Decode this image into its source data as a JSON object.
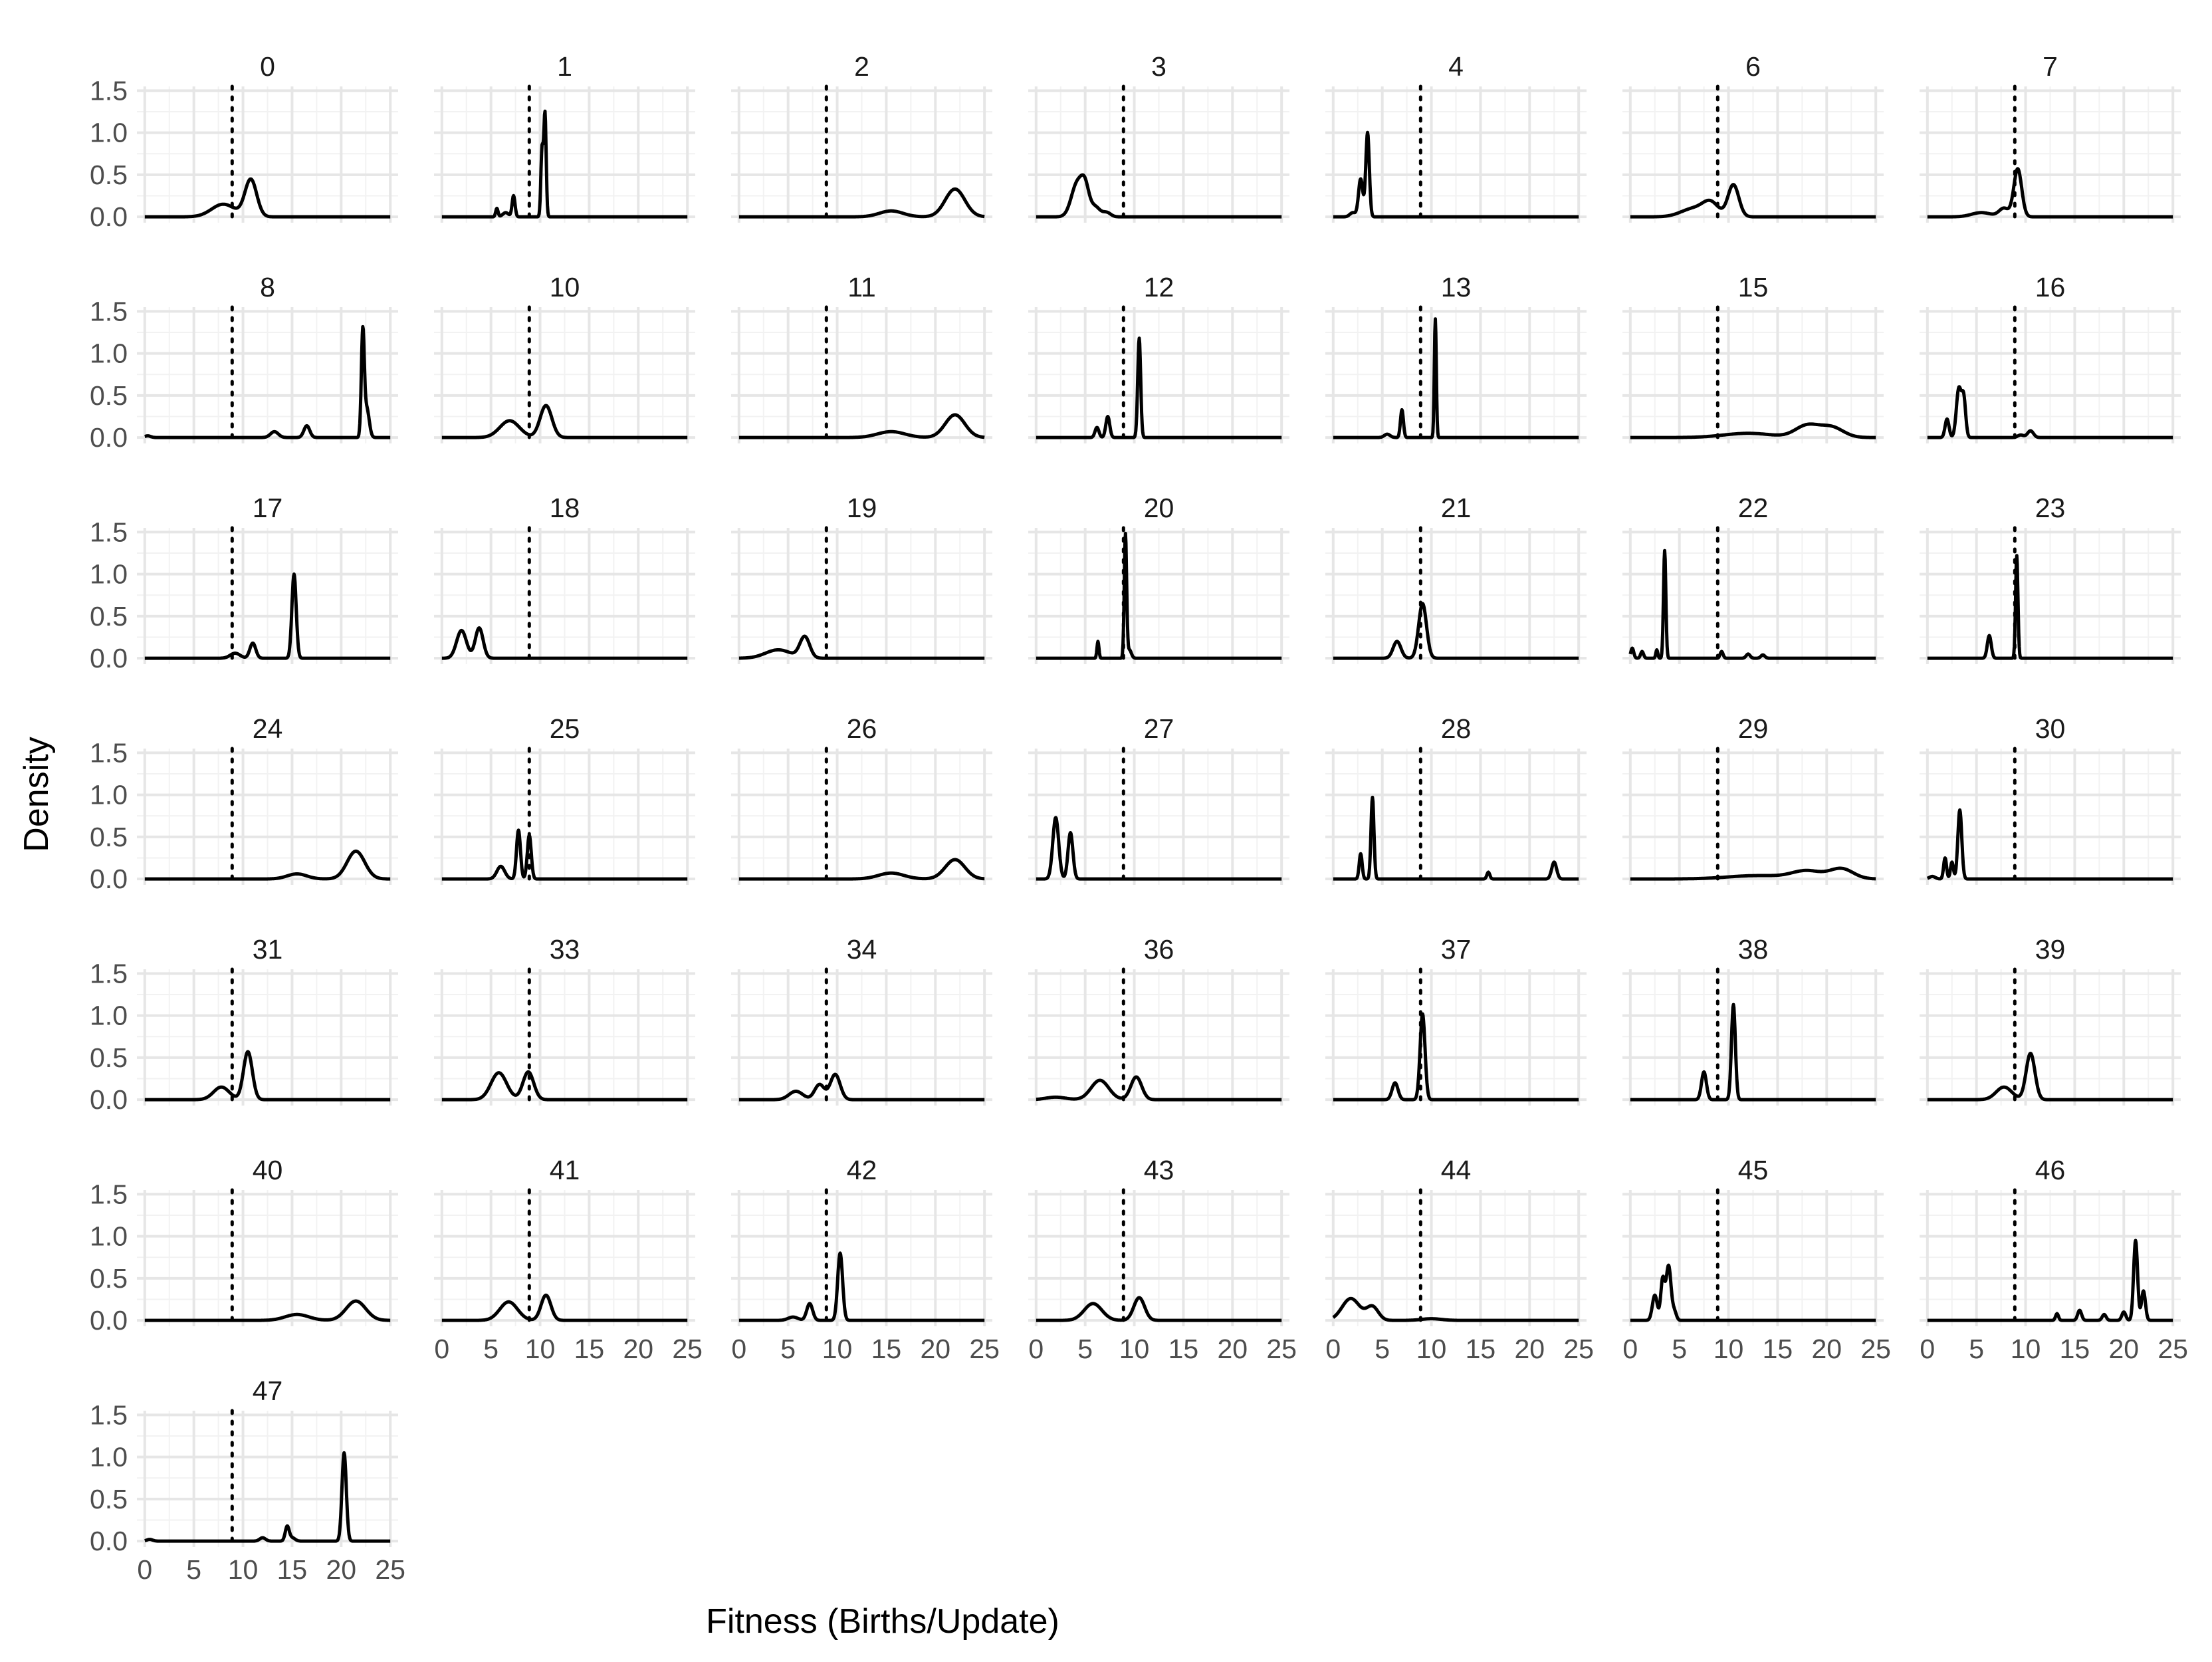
{
  "chart_data": {
    "type": "line",
    "title": "",
    "xlabel": "Fitness (Births/Update)",
    "ylabel": "Density",
    "xlim": [
      -0.8,
      25.8
    ],
    "ylim": [
      -0.07,
      1.55
    ],
    "x_ticks": [
      0,
      5,
      10,
      15,
      20,
      25
    ],
    "y_ticks": [
      0.0,
      0.5,
      1.0,
      1.5
    ],
    "x_tick_labels": [
      "0",
      "5",
      "10",
      "15",
      "20",
      "25"
    ],
    "y_tick_labels": [
      "0.0",
      "0.5",
      "1.0",
      "1.5"
    ],
    "reference_line": {
      "x": 8.9,
      "style": "dotted"
    },
    "grid": true,
    "legend": "none",
    "facet_columns": 7,
    "panels": [
      {
        "label": "0",
        "peaks": [
          [
            8.0,
            0.15,
            1.2
          ],
          [
            10.8,
            0.44,
            0.6
          ]
        ]
      },
      {
        "label": "1",
        "peaks": [
          [
            5.6,
            0.1,
            0.12
          ],
          [
            7.3,
            0.25,
            0.15
          ],
          [
            6.5,
            0.05,
            0.3
          ],
          [
            10.2,
            0.8,
            0.12
          ],
          [
            10.5,
            1.22,
            0.12
          ]
        ]
      },
      {
        "label": "2",
        "peaks": [
          [
            15.5,
            0.07,
            1.2
          ],
          [
            22.0,
            0.33,
            1.0
          ]
        ]
      },
      {
        "label": "3",
        "peaks": [
          [
            4.2,
            0.4,
            0.6
          ],
          [
            5.0,
            0.28,
            0.4
          ],
          [
            6.0,
            0.12,
            0.5
          ],
          [
            7.2,
            0.05,
            0.4
          ]
        ]
      },
      {
        "label": "4",
        "peaks": [
          [
            2.8,
            0.45,
            0.22
          ],
          [
            3.5,
            1.0,
            0.18
          ],
          [
            2.0,
            0.05,
            0.3
          ]
        ]
      },
      {
        "label": "6",
        "peaks": [
          [
            6.5,
            0.1,
            1.3
          ],
          [
            8.2,
            0.15,
            0.8
          ],
          [
            10.5,
            0.38,
            0.55
          ]
        ]
      },
      {
        "label": "7",
        "peaks": [
          [
            5.5,
            0.05,
            1.0
          ],
          [
            7.8,
            0.1,
            0.5
          ],
          [
            9.2,
            0.57,
            0.4
          ]
        ]
      },
      {
        "label": "8",
        "peaks": [
          [
            0.3,
            0.02,
            0.3
          ],
          [
            13.2,
            0.07,
            0.4
          ],
          [
            16.5,
            0.14,
            0.3
          ],
          [
            22.2,
            1.22,
            0.15
          ],
          [
            22.6,
            0.35,
            0.25
          ]
        ]
      },
      {
        "label": "10",
        "peaks": [
          [
            6.9,
            0.2,
            1.0
          ],
          [
            10.6,
            0.38,
            0.6
          ]
        ]
      },
      {
        "label": "11",
        "peaks": [
          [
            15.5,
            0.07,
            1.4
          ],
          [
            22.0,
            0.27,
            1.0
          ]
        ]
      },
      {
        "label": "12",
        "peaks": [
          [
            6.2,
            0.12,
            0.2
          ],
          [
            7.3,
            0.25,
            0.2
          ],
          [
            10.5,
            1.18,
            0.15
          ]
        ]
      },
      {
        "label": "13",
        "peaks": [
          [
            7.0,
            0.33,
            0.15
          ],
          [
            10.4,
            1.41,
            0.1
          ],
          [
            5.5,
            0.04,
            0.3
          ]
        ]
      },
      {
        "label": "15",
        "peaks": [
          [
            12.0,
            0.05,
            2.5
          ],
          [
            18.0,
            0.14,
            1.2
          ],
          [
            20.5,
            0.12,
            1.2
          ]
        ]
      },
      {
        "label": "16",
        "peaks": [
          [
            2.0,
            0.22,
            0.2
          ],
          [
            3.2,
            0.58,
            0.25
          ],
          [
            3.7,
            0.45,
            0.2
          ],
          [
            9.5,
            0.03,
            0.3
          ],
          [
            10.5,
            0.08,
            0.3
          ]
        ]
      },
      {
        "label": "17",
        "peaks": [
          [
            9.2,
            0.06,
            0.5
          ],
          [
            11.0,
            0.18,
            0.3
          ],
          [
            15.2,
            1.0,
            0.22
          ]
        ]
      },
      {
        "label": "18",
        "peaks": [
          [
            2.0,
            0.33,
            0.5
          ],
          [
            3.8,
            0.36,
            0.4
          ]
        ]
      },
      {
        "label": "19",
        "peaks": [
          [
            4.0,
            0.1,
            1.3
          ],
          [
            6.7,
            0.25,
            0.5
          ]
        ]
      },
      {
        "label": "20",
        "peaks": [
          [
            6.3,
            0.2,
            0.1
          ],
          [
            9.1,
            1.47,
            0.12
          ],
          [
            9.5,
            0.1,
            0.2
          ]
        ]
      },
      {
        "label": "21",
        "peaks": [
          [
            6.5,
            0.2,
            0.4
          ],
          [
            9.1,
            0.65,
            0.4
          ]
        ]
      },
      {
        "label": "22",
        "peaks": [
          [
            0.2,
            0.12,
            0.15
          ],
          [
            1.2,
            0.08,
            0.15
          ],
          [
            2.7,
            0.1,
            0.1
          ],
          [
            3.5,
            1.28,
            0.12
          ],
          [
            9.3,
            0.08,
            0.15
          ],
          [
            12.0,
            0.05,
            0.2
          ],
          [
            13.5,
            0.04,
            0.2
          ]
        ]
      },
      {
        "label": "23",
        "peaks": [
          [
            6.3,
            0.27,
            0.2
          ],
          [
            9.1,
            1.22,
            0.12
          ]
        ]
      },
      {
        "label": "24",
        "peaks": [
          [
            15.5,
            0.06,
            1.0
          ],
          [
            21.5,
            0.33,
            0.9
          ]
        ]
      },
      {
        "label": "25",
        "peaks": [
          [
            6.0,
            0.15,
            0.4
          ],
          [
            7.8,
            0.58,
            0.2
          ],
          [
            8.9,
            0.52,
            0.2
          ]
        ]
      },
      {
        "label": "26",
        "peaks": [
          [
            15.5,
            0.07,
            1.3
          ],
          [
            22.0,
            0.23,
            1.0
          ]
        ]
      },
      {
        "label": "27",
        "peaks": [
          [
            2.0,
            0.73,
            0.3
          ],
          [
            3.5,
            0.55,
            0.25
          ]
        ]
      },
      {
        "label": "28",
        "peaks": [
          [
            2.8,
            0.3,
            0.15
          ],
          [
            4.0,
            0.97,
            0.15
          ],
          [
            15.8,
            0.08,
            0.15
          ],
          [
            22.5,
            0.2,
            0.25
          ]
        ]
      },
      {
        "label": "29",
        "peaks": [
          [
            13.0,
            0.04,
            3.0
          ],
          [
            18.0,
            0.09,
            1.5
          ],
          [
            21.5,
            0.12,
            1.2
          ]
        ]
      },
      {
        "label": "30",
        "peaks": [
          [
            1.8,
            0.25,
            0.15
          ],
          [
            2.5,
            0.2,
            0.15
          ],
          [
            3.3,
            0.82,
            0.2
          ],
          [
            0.5,
            0.03,
            0.3
          ]
        ]
      },
      {
        "label": "31",
        "peaks": [
          [
            7.8,
            0.15,
            0.8
          ],
          [
            10.5,
            0.57,
            0.45
          ]
        ]
      },
      {
        "label": "33",
        "peaks": [
          [
            5.8,
            0.32,
            0.8
          ],
          [
            8.8,
            0.33,
            0.55
          ]
        ]
      },
      {
        "label": "34",
        "peaks": [
          [
            5.8,
            0.1,
            0.7
          ],
          [
            8.2,
            0.18,
            0.5
          ],
          [
            9.8,
            0.3,
            0.5
          ]
        ]
      },
      {
        "label": "36",
        "peaks": [
          [
            2.0,
            0.03,
            1.0
          ],
          [
            6.5,
            0.23,
            0.9
          ],
          [
            10.2,
            0.27,
            0.55
          ]
        ]
      },
      {
        "label": "37",
        "peaks": [
          [
            6.3,
            0.2,
            0.3
          ],
          [
            9.1,
            1.02,
            0.25
          ]
        ]
      },
      {
        "label": "38",
        "peaks": [
          [
            7.5,
            0.33,
            0.25
          ],
          [
            10.5,
            1.13,
            0.2
          ]
        ]
      },
      {
        "label": "39",
        "peaks": [
          [
            7.8,
            0.15,
            0.8
          ],
          [
            10.5,
            0.55,
            0.45
          ]
        ]
      },
      {
        "label": "40",
        "peaks": [
          [
            15.5,
            0.07,
            1.2
          ],
          [
            21.5,
            0.23,
            1.0
          ]
        ]
      },
      {
        "label": "41",
        "peaks": [
          [
            6.8,
            0.22,
            0.9
          ],
          [
            10.6,
            0.3,
            0.5
          ]
        ]
      },
      {
        "label": "42",
        "peaks": [
          [
            5.5,
            0.04,
            0.5
          ],
          [
            7.2,
            0.2,
            0.3
          ],
          [
            10.3,
            0.8,
            0.25
          ]
        ]
      },
      {
        "label": "43",
        "peaks": [
          [
            5.8,
            0.2,
            0.9
          ],
          [
            10.5,
            0.27,
            0.55
          ]
        ]
      },
      {
        "label": "44",
        "peaks": [
          [
            1.8,
            0.26,
            0.9
          ],
          [
            4.0,
            0.16,
            0.6
          ],
          [
            10.0,
            0.02,
            1.0
          ]
        ]
      },
      {
        "label": "45",
        "peaks": [
          [
            2.5,
            0.3,
            0.25
          ],
          [
            3.3,
            0.48,
            0.2
          ],
          [
            3.9,
            0.65,
            0.25
          ],
          [
            4.5,
            0.1,
            0.2
          ]
        ]
      },
      {
        "label": "46",
        "peaks": [
          [
            13.2,
            0.08,
            0.15
          ],
          [
            15.5,
            0.12,
            0.2
          ],
          [
            18.0,
            0.07,
            0.2
          ],
          [
            20.0,
            0.1,
            0.2
          ],
          [
            21.2,
            0.95,
            0.2
          ],
          [
            22.0,
            0.35,
            0.2
          ]
        ]
      },
      {
        "label": "47",
        "peaks": [
          [
            0.5,
            0.02,
            0.3
          ],
          [
            12.0,
            0.04,
            0.3
          ],
          [
            14.5,
            0.17,
            0.2
          ],
          [
            15.0,
            0.04,
            0.3
          ],
          [
            20.3,
            1.05,
            0.22
          ]
        ]
      }
    ]
  }
}
